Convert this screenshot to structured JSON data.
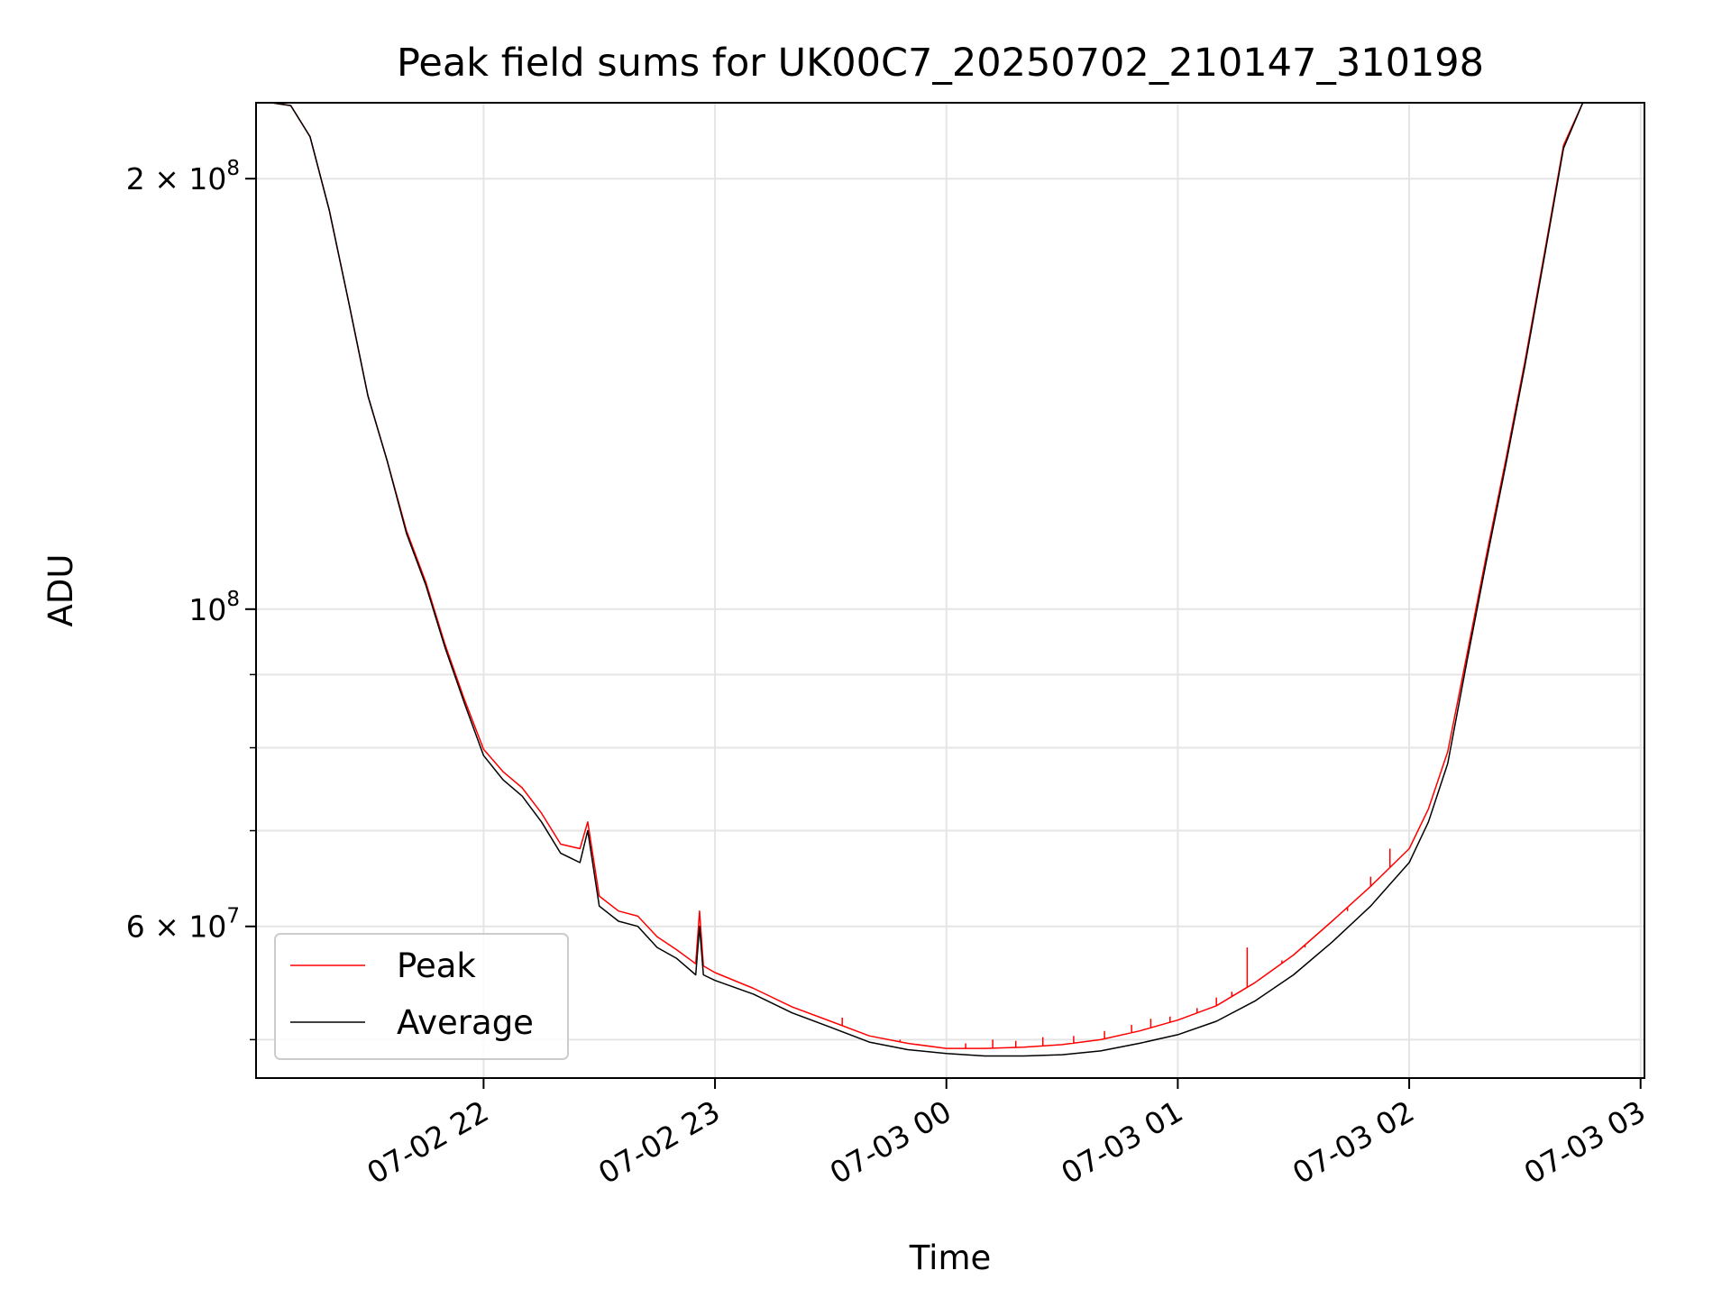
{
  "chart_data": {
    "type": "line",
    "title": "Peak field sums for UK00C7_20250702_210147_310198",
    "xlabel": "Time",
    "ylabel": "ADU",
    "y_scale": "log",
    "xlim": [
      "2025-07-02 21:01",
      "2025-07-03 03:01"
    ],
    "ylim": [
      47000000,
      226000000
    ],
    "x_ticks": [
      {
        "value": "2025-07-02 22:00",
        "label": "07-02 22"
      },
      {
        "value": "2025-07-02 23:00",
        "label": "07-02 23"
      },
      {
        "value": "2025-07-03 00:00",
        "label": "07-03 00"
      },
      {
        "value": "2025-07-03 01:00",
        "label": "07-03 01"
      },
      {
        "value": "2025-07-03 02:00",
        "label": "07-03 02"
      },
      {
        "value": "2025-07-03 03:00",
        "label": "07-03 03"
      }
    ],
    "y_ticks_major": [
      {
        "value": 100000000,
        "label": "10^8",
        "mantissa": "10",
        "exponent": "8"
      },
      {
        "value": 200000000,
        "label": "2×10^8",
        "mantissa": "2 × 10",
        "exponent": "8"
      },
      {
        "value": 60000000,
        "label": "6×10^7",
        "mantissa": "6 × 10",
        "exponent": "7"
      }
    ],
    "y_ticks_minor": [
      50000000,
      70000000,
      80000000,
      90000000
    ],
    "grid": true,
    "legend": {
      "position": "lower-left",
      "entries": [
        "Peak",
        "Average"
      ]
    },
    "series": [
      {
        "name": "Average",
        "color": "#000000",
        "points": [
          [
            "2025-07-02 21:01",
            226000000
          ],
          [
            "2025-07-02 21:05",
            226000000
          ],
          [
            "2025-07-02 21:10",
            225000000
          ],
          [
            "2025-07-02 21:15",
            214000000
          ],
          [
            "2025-07-02 21:20",
            190000000
          ],
          [
            "2025-07-02 21:25",
            164000000
          ],
          [
            "2025-07-02 21:30",
            141000000
          ],
          [
            "2025-07-02 21:35",
            127000000
          ],
          [
            "2025-07-02 21:40",
            113000000
          ],
          [
            "2025-07-02 21:45",
            104000000
          ],
          [
            "2025-07-02 21:50",
            94000000
          ],
          [
            "2025-07-02 21:55",
            86000000
          ],
          [
            "2025-07-02 22:00",
            79000000
          ],
          [
            "2025-07-02 22:05",
            76000000
          ],
          [
            "2025-07-02 22:10",
            74000000
          ],
          [
            "2025-07-02 22:15",
            71000000
          ],
          [
            "2025-07-02 22:20",
            67500000
          ],
          [
            "2025-07-02 22:25",
            66500000
          ],
          [
            "2025-07-02 22:27",
            70000000
          ],
          [
            "2025-07-02 22:30",
            62000000
          ],
          [
            "2025-07-02 22:35",
            60500000
          ],
          [
            "2025-07-02 22:40",
            60000000
          ],
          [
            "2025-07-02 22:45",
            58000000
          ],
          [
            "2025-07-02 22:50",
            57000000
          ],
          [
            "2025-07-02 22:55",
            55500000
          ],
          [
            "2025-07-02 22:56",
            60000000
          ],
          [
            "2025-07-02 22:57",
            55500000
          ],
          [
            "2025-07-02 23:00",
            55000000
          ],
          [
            "2025-07-02 23:10",
            53800000
          ],
          [
            "2025-07-02 23:20",
            52200000
          ],
          [
            "2025-07-02 23:30",
            51000000
          ],
          [
            "2025-07-02 23:40",
            49800000
          ],
          [
            "2025-07-02 23:50",
            49200000
          ],
          [
            "2025-07-03 00:00",
            48900000
          ],
          [
            "2025-07-03 00:10",
            48700000
          ],
          [
            "2025-07-03 00:20",
            48700000
          ],
          [
            "2025-07-03 00:30",
            48800000
          ],
          [
            "2025-07-03 00:40",
            49100000
          ],
          [
            "2025-07-03 00:50",
            49700000
          ],
          [
            "2025-07-03 01:00",
            50400000
          ],
          [
            "2025-07-03 01:10",
            51500000
          ],
          [
            "2025-07-03 01:20",
            53200000
          ],
          [
            "2025-07-03 01:30",
            55500000
          ],
          [
            "2025-07-03 01:40",
            58500000
          ],
          [
            "2025-07-03 01:50",
            62000000
          ],
          [
            "2025-07-03 02:00",
            66500000
          ],
          [
            "2025-07-03 02:05",
            71000000
          ],
          [
            "2025-07-03 02:10",
            78000000
          ],
          [
            "2025-07-03 02:15",
            92000000
          ],
          [
            "2025-07-03 02:20",
            108000000
          ],
          [
            "2025-07-03 02:25",
            126000000
          ],
          [
            "2025-07-03 02:30",
            148000000
          ],
          [
            "2025-07-03 02:35",
            176000000
          ],
          [
            "2025-07-03 02:40",
            210000000
          ],
          [
            "2025-07-03 02:45",
            226000000
          ],
          [
            "2025-07-03 03:01",
            226000000
          ]
        ]
      },
      {
        "name": "Peak",
        "color": "#ff0000",
        "points": [
          [
            "2025-07-02 21:01",
            226000000
          ],
          [
            "2025-07-02 21:05",
            226000000
          ],
          [
            "2025-07-02 21:10",
            225000000
          ],
          [
            "2025-07-02 21:15",
            214000000
          ],
          [
            "2025-07-02 21:20",
            190000000
          ],
          [
            "2025-07-02 21:25",
            164000000
          ],
          [
            "2025-07-02 21:30",
            141000000
          ],
          [
            "2025-07-02 21:35",
            127000000
          ],
          [
            "2025-07-02 21:40",
            113500000
          ],
          [
            "2025-07-02 21:45",
            104500000
          ],
          [
            "2025-07-02 21:50",
            94500000
          ],
          [
            "2025-07-02 21:55",
            86500000
          ],
          [
            "2025-07-02 22:00",
            79800000
          ],
          [
            "2025-07-02 22:05",
            77000000
          ],
          [
            "2025-07-02 22:10",
            75000000
          ],
          [
            "2025-07-02 22:15",
            72000000
          ],
          [
            "2025-07-02 22:20",
            68500000
          ],
          [
            "2025-07-02 22:25",
            68000000
          ],
          [
            "2025-07-02 22:27",
            71000000
          ],
          [
            "2025-07-02 22:30",
            63000000
          ],
          [
            "2025-07-02 22:35",
            61500000
          ],
          [
            "2025-07-02 22:40",
            61000000
          ],
          [
            "2025-07-02 22:45",
            59000000
          ],
          [
            "2025-07-02 22:50",
            57800000
          ],
          [
            "2025-07-02 22:55",
            56500000
          ],
          [
            "2025-07-02 22:56",
            61500000
          ],
          [
            "2025-07-02 22:57",
            56300000
          ],
          [
            "2025-07-02 23:00",
            55700000
          ],
          [
            "2025-07-02 23:10",
            54300000
          ],
          [
            "2025-07-02 23:20",
            52700000
          ],
          [
            "2025-07-02 23:30",
            51500000
          ],
          [
            "2025-07-02 23:40",
            50300000
          ],
          [
            "2025-07-02 23:50",
            49700000
          ],
          [
            "2025-07-03 00:00",
            49300000
          ],
          [
            "2025-07-03 00:10",
            49300000
          ],
          [
            "2025-07-03 00:20",
            49400000
          ],
          [
            "2025-07-03 00:30",
            49600000
          ],
          [
            "2025-07-03 00:40",
            50000000
          ],
          [
            "2025-07-03 00:50",
            50700000
          ],
          [
            "2025-07-03 01:00",
            51600000
          ],
          [
            "2025-07-03 01:10",
            52800000
          ],
          [
            "2025-07-03 01:20",
            54800000
          ],
          [
            "2025-07-03 01:30",
            57300000
          ],
          [
            "2025-07-03 01:40",
            60500000
          ],
          [
            "2025-07-03 01:50",
            64000000
          ],
          [
            "2025-07-03 02:00",
            68000000
          ],
          [
            "2025-07-03 02:05",
            72500000
          ],
          [
            "2025-07-03 02:10",
            79500000
          ],
          [
            "2025-07-03 02:15",
            93000000
          ],
          [
            "2025-07-03 02:20",
            109000000
          ],
          [
            "2025-07-03 02:25",
            127000000
          ],
          [
            "2025-07-03 02:30",
            149000000
          ],
          [
            "2025-07-03 02:35",
            177000000
          ],
          [
            "2025-07-03 02:40",
            211000000
          ],
          [
            "2025-07-03 02:45",
            226000000
          ],
          [
            "2025-07-03 03:01",
            226000000
          ]
        ],
        "spikes": [
          [
            "2025-07-02 23:33",
            51800000
          ],
          [
            "2025-07-02 23:48",
            50000000
          ],
          [
            "2025-07-03 00:05",
            49700000
          ],
          [
            "2025-07-03 00:12",
            50000000
          ],
          [
            "2025-07-03 00:18",
            49900000
          ],
          [
            "2025-07-03 00:25",
            50200000
          ],
          [
            "2025-07-03 00:33",
            50300000
          ],
          [
            "2025-07-03 00:41",
            50700000
          ],
          [
            "2025-07-03 00:48",
            51200000
          ],
          [
            "2025-07-03 00:53",
            51700000
          ],
          [
            "2025-07-03 00:58",
            51900000
          ],
          [
            "2025-07-03 01:05",
            52600000
          ],
          [
            "2025-07-03 01:10",
            53500000
          ],
          [
            "2025-07-03 01:14",
            54000000
          ],
          [
            "2025-07-03 01:18",
            58000000
          ],
          [
            "2025-07-03 01:22",
            55300000
          ],
          [
            "2025-07-03 01:27",
            56800000
          ],
          [
            "2025-07-03 01:33",
            58000000
          ],
          [
            "2025-07-03 01:38",
            59800000
          ],
          [
            "2025-07-03 01:44",
            61500000
          ],
          [
            "2025-07-03 01:50",
            65000000
          ],
          [
            "2025-07-03 01:55",
            68000000
          ]
        ]
      }
    ]
  }
}
